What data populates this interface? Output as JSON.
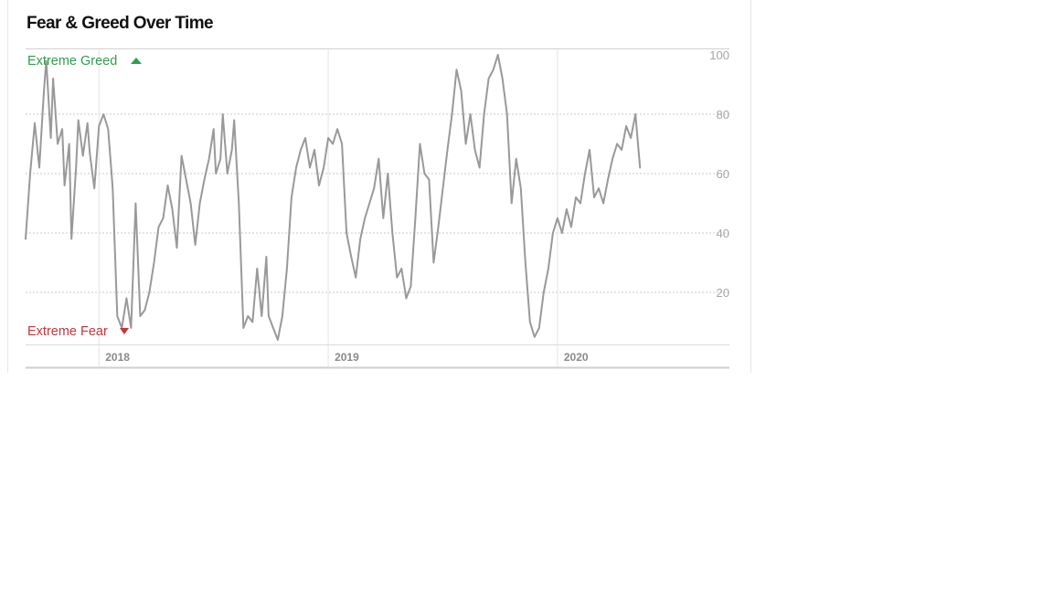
{
  "panel": {
    "title": "Fear & Greed Over Time"
  },
  "colors": {
    "line": "#999999",
    "greed": "#2e9e4f",
    "fear": "#c9343a",
    "grid": "#c8c8c8",
    "axis": "#d2d2d2"
  },
  "chart_data": {
    "type": "line",
    "title": "Fear & Greed Over Time",
    "xlabel": "",
    "ylabel": "",
    "x_ticks": [
      "2018",
      "2019",
      "2020"
    ],
    "y_ticks": [
      20,
      40,
      60,
      80,
      100
    ],
    "x_range": [
      2017.68,
      2020.75
    ],
    "ylim": [
      0,
      100
    ],
    "grid": "horizontal dotted lines at 20, 40, 60, 80; vertical line at each year",
    "annotations": {
      "top": "Extreme Greed",
      "bottom": "Extreme Fear"
    },
    "series": [
      {
        "values": [
          [
            2017.68,
            38
          ],
          [
            2017.7,
            60
          ],
          [
            2017.72,
            77
          ],
          [
            2017.74,
            62
          ],
          [
            2017.76,
            88
          ],
          [
            2017.77,
            98
          ],
          [
            2017.79,
            72
          ],
          [
            2017.8,
            92
          ],
          [
            2017.82,
            70
          ],
          [
            2017.84,
            75
          ],
          [
            2017.85,
            56
          ],
          [
            2017.87,
            70
          ],
          [
            2017.88,
            38
          ],
          [
            2017.9,
            62
          ],
          [
            2017.91,
            78
          ],
          [
            2017.93,
            66
          ],
          [
            2017.95,
            77
          ],
          [
            2017.96,
            67
          ],
          [
            2017.98,
            55
          ],
          [
            2018.0,
            76
          ],
          [
            2018.02,
            80
          ],
          [
            2018.04,
            75
          ],
          [
            2018.06,
            55
          ],
          [
            2018.08,
            12
          ],
          [
            2018.1,
            8
          ],
          [
            2018.12,
            18
          ],
          [
            2018.14,
            8
          ],
          [
            2018.16,
            50
          ],
          [
            2018.18,
            12
          ],
          [
            2018.2,
            14
          ],
          [
            2018.22,
            20
          ],
          [
            2018.24,
            30
          ],
          [
            2018.26,
            42
          ],
          [
            2018.28,
            45
          ],
          [
            2018.3,
            56
          ],
          [
            2018.32,
            48
          ],
          [
            2018.34,
            35
          ],
          [
            2018.36,
            66
          ],
          [
            2018.38,
            58
          ],
          [
            2018.4,
            50
          ],
          [
            2018.42,
            36
          ],
          [
            2018.44,
            50
          ],
          [
            2018.46,
            58
          ],
          [
            2018.48,
            65
          ],
          [
            2018.5,
            75
          ],
          [
            2018.51,
            60
          ],
          [
            2018.53,
            65
          ],
          [
            2018.54,
            80
          ],
          [
            2018.56,
            60
          ],
          [
            2018.58,
            68
          ],
          [
            2018.59,
            78
          ],
          [
            2018.61,
            50
          ],
          [
            2018.63,
            8
          ],
          [
            2018.65,
            12
          ],
          [
            2018.67,
            10
          ],
          [
            2018.69,
            28
          ],
          [
            2018.71,
            12
          ],
          [
            2018.73,
            32
          ],
          [
            2018.74,
            12
          ],
          [
            2018.76,
            8
          ],
          [
            2018.78,
            4
          ],
          [
            2018.8,
            12
          ],
          [
            2018.82,
            28
          ],
          [
            2018.84,
            52
          ],
          [
            2018.86,
            62
          ],
          [
            2018.88,
            68
          ],
          [
            2018.9,
            72
          ],
          [
            2018.92,
            62
          ],
          [
            2018.94,
            68
          ],
          [
            2018.96,
            56
          ],
          [
            2018.98,
            62
          ],
          [
            2019.0,
            72
          ],
          [
            2019.02,
            70
          ],
          [
            2019.04,
            75
          ],
          [
            2019.06,
            70
          ],
          [
            2019.08,
            40
          ],
          [
            2019.1,
            32
          ],
          [
            2019.12,
            25
          ],
          [
            2019.14,
            38
          ],
          [
            2019.16,
            45
          ],
          [
            2019.18,
            50
          ],
          [
            2019.2,
            55
          ],
          [
            2019.22,
            65
          ],
          [
            2019.24,
            45
          ],
          [
            2019.26,
            60
          ],
          [
            2019.28,
            40
          ],
          [
            2019.3,
            25
          ],
          [
            2019.32,
            28
          ],
          [
            2019.34,
            18
          ],
          [
            2019.36,
            22
          ],
          [
            2019.38,
            45
          ],
          [
            2019.4,
            70
          ],
          [
            2019.42,
            60
          ],
          [
            2019.44,
            58
          ],
          [
            2019.46,
            30
          ],
          [
            2019.48,
            42
          ],
          [
            2019.5,
            55
          ],
          [
            2019.52,
            68
          ],
          [
            2019.54,
            80
          ],
          [
            2019.56,
            95
          ],
          [
            2019.58,
            88
          ],
          [
            2019.6,
            70
          ],
          [
            2019.62,
            80
          ],
          [
            2019.64,
            68
          ],
          [
            2019.66,
            62
          ],
          [
            2019.68,
            80
          ],
          [
            2019.7,
            92
          ],
          [
            2019.72,
            95
          ],
          [
            2019.74,
            100
          ],
          [
            2019.76,
            92
          ],
          [
            2019.78,
            80
          ],
          [
            2019.8,
            50
          ],
          [
            2019.82,
            65
          ],
          [
            2019.84,
            55
          ],
          [
            2019.86,
            30
          ],
          [
            2019.88,
            10
          ],
          [
            2019.9,
            5
          ],
          [
            2019.92,
            8
          ],
          [
            2019.94,
            20
          ],
          [
            2019.96,
            28
          ],
          [
            2019.98,
            40
          ],
          [
            2020.0,
            45
          ],
          [
            2020.02,
            40
          ],
          [
            2020.04,
            48
          ],
          [
            2020.06,
            42
          ],
          [
            2020.08,
            52
          ],
          [
            2020.1,
            50
          ],
          [
            2020.12,
            60
          ],
          [
            2020.14,
            68
          ],
          [
            2020.16,
            52
          ],
          [
            2020.18,
            55
          ],
          [
            2020.2,
            50
          ],
          [
            2020.22,
            58
          ],
          [
            2020.24,
            65
          ],
          [
            2020.26,
            70
          ],
          [
            2020.28,
            68
          ],
          [
            2020.3,
            76
          ],
          [
            2020.32,
            72
          ],
          [
            2020.34,
            80
          ],
          [
            2020.36,
            62
          ]
        ]
      }
    ]
  }
}
